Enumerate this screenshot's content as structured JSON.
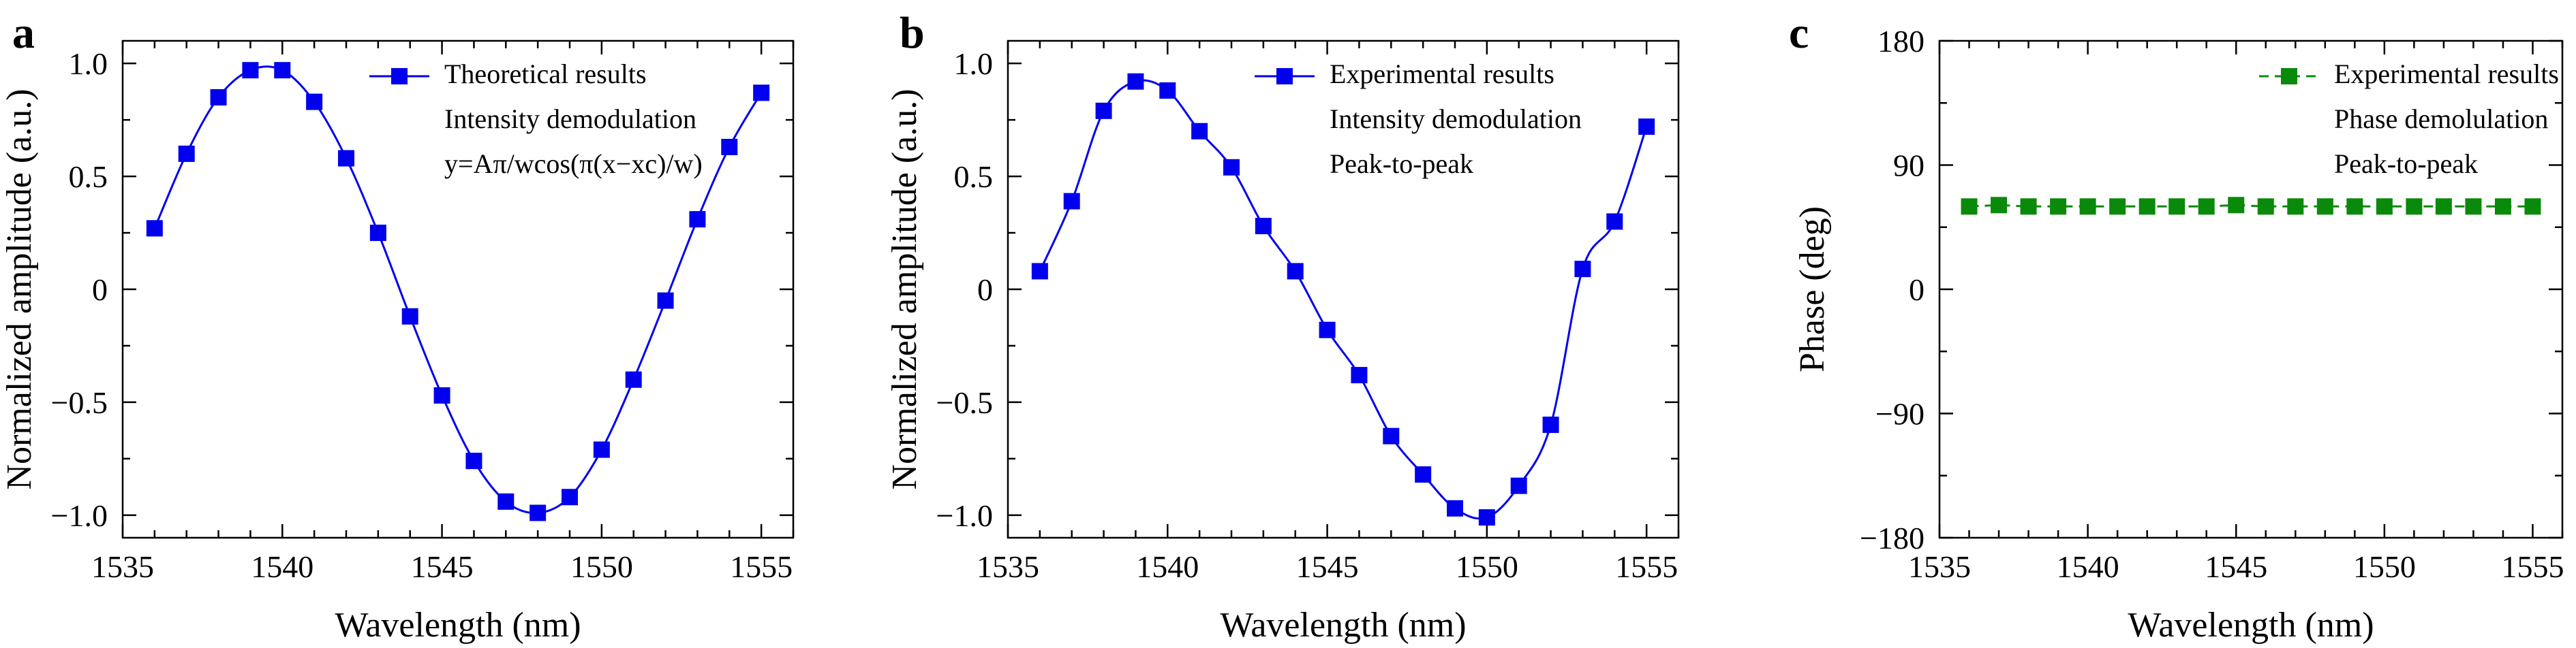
{
  "chart_data": [
    {
      "type": "line",
      "panel_label": "a",
      "title": "",
      "xlabel": "Wavelength (nm)",
      "ylabel": "Normalized amplitude (a.u.)",
      "xlim": [
        1535,
        1556
      ],
      "ylim": [
        -1.1,
        1.1
      ],
      "x_ticks": [
        1535,
        1540,
        1545,
        1550,
        1555
      ],
      "y_ticks": [
        1.0,
        0.5,
        0,
        -0.5,
        -1.0
      ],
      "y_tick_labels": [
        "1.0",
        "0.5",
        "0",
        "−0.5",
        "−1.0"
      ],
      "grid": false,
      "legend_position": "top-right",
      "legend_lines": [
        "Theoretical results",
        "Intensity demodulation",
        "y=Aπ/wcos(π(x−xc)/w)"
      ],
      "series": [
        {
          "name": "Theoretical results",
          "color": "#0000ee",
          "marker": "square",
          "line_style": "solid",
          "x": [
            1536,
            1537,
            1538,
            1539,
            1540,
            1541,
            1542,
            1543,
            1544,
            1545,
            1546,
            1547,
            1548,
            1549,
            1550,
            1551,
            1552,
            1553,
            1554,
            1555
          ],
          "y": [
            0.27,
            0.6,
            0.85,
            0.97,
            0.97,
            0.83,
            0.58,
            0.25,
            -0.12,
            -0.47,
            -0.76,
            -0.94,
            -0.99,
            -0.92,
            -0.71,
            -0.4,
            -0.05,
            0.31,
            0.63,
            0.87
          ]
        }
      ]
    },
    {
      "type": "line",
      "panel_label": "b",
      "title": "",
      "xlabel": "Wavelength (nm)",
      "ylabel": "Normalized amplitude (a.u.)",
      "xlim": [
        1535,
        1556
      ],
      "ylim": [
        -1.1,
        1.1
      ],
      "x_ticks": [
        1535,
        1540,
        1545,
        1550,
        1555
      ],
      "y_ticks": [
        1.0,
        0.5,
        0,
        -0.5,
        -1.0
      ],
      "y_tick_labels": [
        "1.0",
        "0.5",
        "0",
        "−0.5",
        "−1.0"
      ],
      "grid": false,
      "legend_position": "top-right",
      "legend_lines": [
        "Experimental results",
        "Intensity demodulation",
        "Peak-to-peak"
      ],
      "series": [
        {
          "name": "Experimental results",
          "color": "#0000ee",
          "marker": "square",
          "line_style": "solid",
          "x": [
            1536,
            1537,
            1538,
            1539,
            1540,
            1541,
            1542,
            1543,
            1544,
            1545,
            1546,
            1547,
            1548,
            1549,
            1550,
            1551,
            1552,
            1553,
            1554,
            1555
          ],
          "y": [
            0.08,
            0.39,
            0.79,
            0.92,
            0.88,
            0.7,
            0.54,
            0.28,
            0.08,
            -0.18,
            -0.38,
            -0.65,
            -0.82,
            -0.97,
            -1.01,
            -0.87,
            -0.6,
            0.09,
            0.3,
            0.72
          ]
        }
      ]
    },
    {
      "type": "line",
      "panel_label": "c",
      "title": "",
      "xlabel": "Wavelength (nm)",
      "ylabel": "Phase (deg)",
      "xlim": [
        1535,
        1556
      ],
      "ylim": [
        -180,
        180
      ],
      "x_ticks": [
        1535,
        1540,
        1545,
        1550,
        1555
      ],
      "y_ticks": [
        180,
        90,
        0,
        -90,
        -180
      ],
      "y_tick_labels": [
        "180",
        "90",
        "0",
        "−90",
        "−180"
      ],
      "grid": false,
      "legend_position": "top-right",
      "legend_lines": [
        "Experimental results",
        "Phase demolulation",
        "Peak-to-peak"
      ],
      "series": [
        {
          "name": "Experimental results",
          "color": "#0a8a0a",
          "marker": "square",
          "line_style": "dashed",
          "x": [
            1536,
            1537,
            1538,
            1539,
            1540,
            1541,
            1542,
            1543,
            1544,
            1545,
            1546,
            1547,
            1548,
            1549,
            1550,
            1551,
            1552,
            1553,
            1554,
            1555
          ],
          "y": [
            60,
            61,
            60,
            60,
            60,
            60,
            60,
            60,
            60,
            61,
            60,
            60,
            60,
            60,
            60,
            60,
            60,
            60,
            60,
            60
          ]
        }
      ]
    }
  ]
}
